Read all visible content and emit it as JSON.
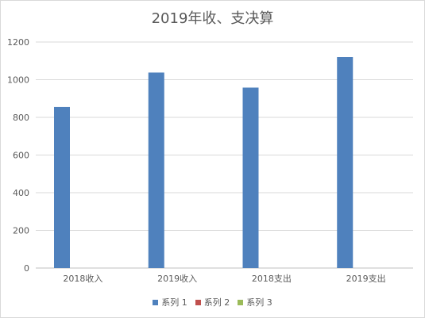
{
  "chart_data": {
    "type": "bar",
    "title": "2019年收、支决算",
    "categories": [
      "2018收入",
      "2019收入",
      "2018支出",
      "2019支出"
    ],
    "series": [
      {
        "name": "系列 1",
        "color": "#4f81bd",
        "values": [
          855,
          1038,
          958,
          1120
        ]
      },
      {
        "name": "系列 2",
        "color": "#c0504d",
        "values": [
          0,
          0,
          0,
          0
        ]
      },
      {
        "name": "系列 3",
        "color": "#9bbb59",
        "values": [
          0,
          0,
          0,
          0
        ]
      }
    ],
    "ylim": [
      0,
      1200
    ],
    "yticks": [
      "0",
      "200",
      "400",
      "600",
      "800",
      "1000",
      "1200"
    ],
    "grid": true,
    "legend_position": "bottom"
  }
}
